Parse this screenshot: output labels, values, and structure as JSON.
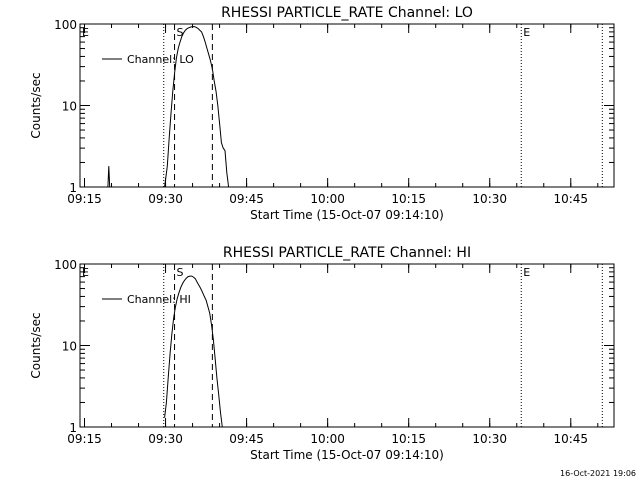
{
  "footer_timestamp": "16-Oct-2021 19:06",
  "colors": {
    "line": "#000000",
    "background": "#ffffff"
  },
  "chart_data": [
    {
      "type": "line",
      "title": "RHESSI PARTICLE_RATE Channel: LO",
      "xlabel": "Start Time (15-Oct-07 09:14:10)",
      "ylabel": "Counts/sec",
      "yscale": "log",
      "ylim": [
        1,
        100
      ],
      "xlim": [
        "09:14:10",
        "10:53:00"
      ],
      "x_ticks": [
        "09:15",
        "09:30",
        "09:45",
        "10:00",
        "10:15",
        "10:30",
        "10:45"
      ],
      "y_ticks": [
        "1",
        "10",
        "100"
      ],
      "legend": {
        "entries": [
          "Channel: LO"
        ],
        "position": "top-left"
      },
      "grid": false,
      "markers": [
        {
          "label": "E",
          "time": "09:14:10",
          "style": "dotted"
        },
        {
          "label": "",
          "time": "09:29:40",
          "style": "dotted"
        },
        {
          "label": "S",
          "time": "09:31:40",
          "style": "dashed"
        },
        {
          "label": "",
          "time": "09:38:40",
          "style": "dashed"
        },
        {
          "label": "E",
          "time": "10:35:50",
          "style": "dotted"
        },
        {
          "label": "",
          "time": "10:50:50",
          "style": "dotted"
        }
      ],
      "series": [
        {
          "name": "Channel: LO",
          "points": [
            [
              "09:19:20",
              1.0
            ],
            [
              "09:19:30",
              1.8
            ],
            [
              "09:19:40",
              1.0
            ],
            [
              "09:29:50",
              1.0
            ],
            [
              "09:30:20",
              1.8
            ],
            [
              "09:30:40",
              4.0
            ],
            [
              "09:31:00",
              8.0
            ],
            [
              "09:31:20",
              15.0
            ],
            [
              "09:31:40",
              25.0
            ],
            [
              "09:32:00",
              38.0
            ],
            [
              "09:32:20",
              50.0
            ],
            [
              "09:32:40",
              60.0
            ],
            [
              "09:33:00",
              70.0
            ],
            [
              "09:33:20",
              78.0
            ],
            [
              "09:33:40",
              84.0
            ],
            [
              "09:34:00",
              88.0
            ],
            [
              "09:34:20",
              90.0
            ],
            [
              "09:34:40",
              92.0
            ],
            [
              "09:35:00",
              93.0
            ],
            [
              "09:35:20",
              93.0
            ],
            [
              "09:35:40",
              91.0
            ],
            [
              "09:36:00",
              88.0
            ],
            [
              "09:36:20",
              84.0
            ],
            [
              "09:36:40",
              80.0
            ],
            [
              "09:37:00",
              70.0
            ],
            [
              "09:37:20",
              60.0
            ],
            [
              "09:37:40",
              50.0
            ],
            [
              "09:38:00",
              42.0
            ],
            [
              "09:38:20",
              35.0
            ],
            [
              "09:38:40",
              28.0
            ],
            [
              "09:39:00",
              20.0
            ],
            [
              "09:39:20",
              15.0
            ],
            [
              "09:39:40",
              10.0
            ],
            [
              "09:40:00",
              6.0
            ],
            [
              "09:40:20",
              3.5
            ],
            [
              "09:40:40",
              3.0
            ],
            [
              "09:41:00",
              2.8
            ],
            [
              "09:41:20",
              1.5
            ],
            [
              "09:41:40",
              1.0
            ]
          ]
        }
      ]
    },
    {
      "type": "line",
      "title": "RHESSI PARTICLE_RATE Channel: HI",
      "xlabel": "Start Time (15-Oct-07 09:14:10)",
      "ylabel": "Counts/sec",
      "yscale": "log",
      "ylim": [
        1,
        100
      ],
      "xlim": [
        "09:14:10",
        "10:53:00"
      ],
      "x_ticks": [
        "09:15",
        "09:30",
        "09:45",
        "10:00",
        "10:15",
        "10:30",
        "10:45"
      ],
      "y_ticks": [
        "1",
        "10",
        "100"
      ],
      "legend": {
        "entries": [
          "Channel: HI"
        ],
        "position": "top-left"
      },
      "grid": false,
      "markers": [
        {
          "label": "E",
          "time": "09:14:10",
          "style": "dotted"
        },
        {
          "label": "",
          "time": "09:29:40",
          "style": "dotted"
        },
        {
          "label": "S",
          "time": "09:31:40",
          "style": "dashed"
        },
        {
          "label": "",
          "time": "09:38:40",
          "style": "dashed"
        },
        {
          "label": "E",
          "time": "10:35:50",
          "style": "dotted"
        },
        {
          "label": "",
          "time": "10:50:50",
          "style": "dotted"
        }
      ],
      "series": [
        {
          "name": "Channel: HI",
          "points": [
            [
              "09:29:50",
              1.3
            ],
            [
              "09:30:10",
              2.0
            ],
            [
              "09:30:30",
              4.0
            ],
            [
              "09:30:50",
              8.0
            ],
            [
              "09:31:10",
              14.0
            ],
            [
              "09:31:30",
              22.0
            ],
            [
              "09:31:50",
              30.0
            ],
            [
              "09:32:10",
              38.0
            ],
            [
              "09:32:30",
              45.0
            ],
            [
              "09:32:50",
              52.0
            ],
            [
              "09:33:10",
              58.0
            ],
            [
              "09:33:30",
              63.0
            ],
            [
              "09:33:50",
              67.0
            ],
            [
              "09:34:10",
              70.0
            ],
            [
              "09:34:30",
              71.0
            ],
            [
              "09:34:50",
              71.0
            ],
            [
              "09:35:10",
              69.0
            ],
            [
              "09:35:30",
              66.0
            ],
            [
              "09:35:50",
              60.0
            ],
            [
              "09:36:10",
              55.0
            ],
            [
              "09:36:30",
              50.0
            ],
            [
              "09:36:50",
              45.0
            ],
            [
              "09:37:10",
              40.0
            ],
            [
              "09:37:30",
              36.0
            ],
            [
              "09:37:50",
              30.0
            ],
            [
              "09:38:10",
              25.0
            ],
            [
              "09:38:30",
              18.0
            ],
            [
              "09:38:50",
              12.0
            ],
            [
              "09:39:10",
              7.0
            ],
            [
              "09:39:30",
              4.0
            ],
            [
              "09:39:50",
              2.5
            ],
            [
              "09:40:10",
              1.5
            ],
            [
              "09:40:30",
              1.0
            ]
          ]
        }
      ]
    }
  ]
}
